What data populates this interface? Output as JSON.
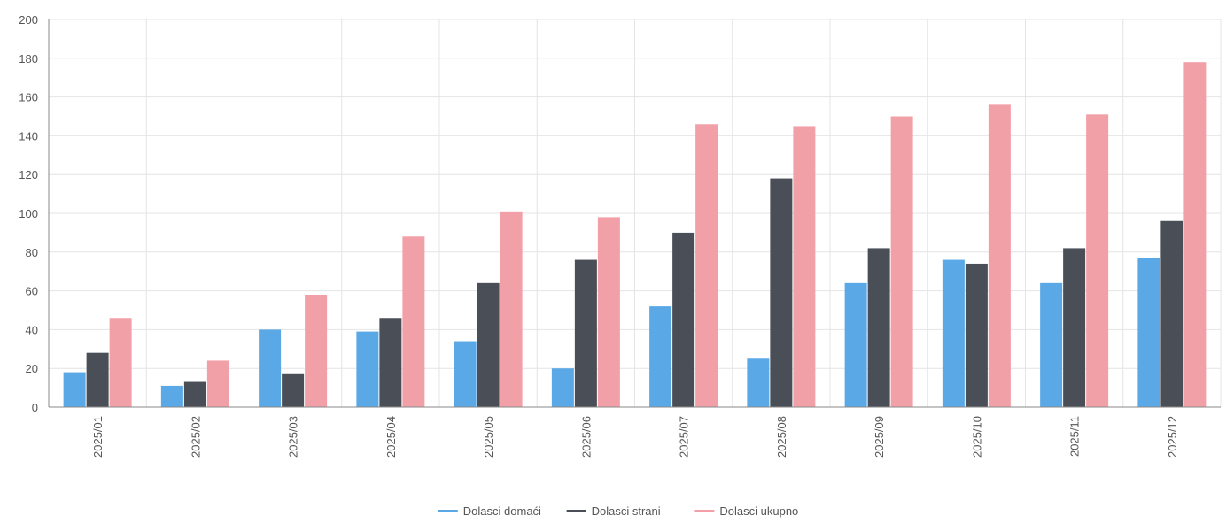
{
  "chart_data": {
    "type": "bar",
    "categories": [
      "2025/01",
      "2025/02",
      "2025/03",
      "2025/04",
      "2025/05",
      "2025/06",
      "2025/07",
      "2025/08",
      "2025/09",
      "2025/10",
      "2025/11",
      "2025/12"
    ],
    "series": [
      {
        "name": "Dolasci domaći",
        "color": "#5aa9e6",
        "values": [
          18,
          11,
          40,
          39,
          34,
          20,
          52,
          25,
          64,
          76,
          64,
          77
        ]
      },
      {
        "name": "Dolasci strani",
        "color": "#4a4f57",
        "values": [
          28,
          13,
          17,
          46,
          64,
          76,
          90,
          118,
          82,
          74,
          82,
          96
        ]
      },
      {
        "name": "Dolasci ukupno",
        "color": "#f2a0a8",
        "values": [
          46,
          24,
          58,
          88,
          101,
          98,
          146,
          145,
          150,
          156,
          151,
          178
        ]
      }
    ],
    "y_ticks": [
      "0",
      "20",
      "40",
      "60",
      "80",
      "100",
      "120",
      "140",
      "160",
      "180",
      "200"
    ],
    "ylim": [
      0,
      200
    ],
    "grid": true,
    "legend_position": "bottom-center",
    "title": "",
    "xlabel": "",
    "ylabel": ""
  }
}
